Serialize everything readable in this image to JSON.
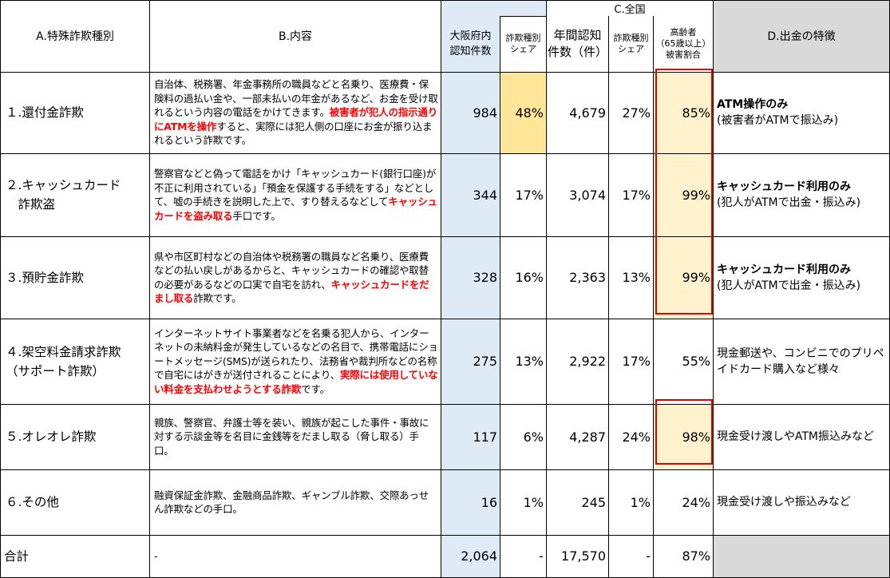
{
  "headers": {
    "a": "A.特殊詐欺種別",
    "b": "B.内容",
    "c": "C.全国",
    "osaka_count": [
      "大阪府内",
      "認知件数"
    ],
    "osaka_share": [
      "詐欺種別",
      "シェア"
    ],
    "annual_count": [
      "年間認知",
      "件数（件）"
    ],
    "national_share": [
      "詐欺種別",
      "シェア"
    ],
    "elderly_ratio": [
      "高齢者",
      "（65歳以上）",
      "被害割合"
    ],
    "d": "D.出金の特徴"
  },
  "rows": [
    {
      "type": [
        "１.還付金詐欺"
      ],
      "desc_plain": "自治体、税務署、年金事務所の職員などと名乗り、医療費・保険料の過払い金や、一部未払いの年金があるなど、お金を受け取れるという内容の電話をかけてきます。",
      "desc_red": "被害者が犯人の指示通りにATMを操作",
      "desc_tail": "すると、実際には犯人側の口座にお金が振り込まれるという詐欺です。",
      "osaka_count": "984",
      "osaka_share": "48%",
      "national_count": "4,679",
      "national_share": "27%",
      "elderly_ratio": "85%",
      "feature_bold": "ATM操作のみ",
      "feature": "(被害者がATMで振込み)"
    },
    {
      "type": [
        "２.キャッシュカード",
        "　詐欺盗"
      ],
      "desc_plain": "警察官などと偽って電話をかけ「キャッシュカード(銀行口座)が不正に利用されている」「預金を保護する手続をする」などとして、嘘の手続きを説明した上で、すり替えるなどして",
      "desc_red": "キャッシュカードを盗み取る",
      "desc_tail": "手口です。",
      "osaka_count": "344",
      "osaka_share": "17%",
      "national_count": "3,074",
      "national_share": "17%",
      "elderly_ratio": "99%",
      "feature_bold": "キャッシュカード利用のみ",
      "feature": "(犯人がATMで出金・振込み)"
    },
    {
      "type": [
        "３.預貯金詐欺"
      ],
      "desc_plain": "県や市区町村などの自治体や税務署の職員など名乗り、医療費などの払い戻しがあるからと、キャッシュカードの確認や取替の必要があるなどの口実で自宅を訪れ、",
      "desc_red": "キャッシュカードをだまし取る",
      "desc_tail": "詐欺です。",
      "osaka_count": "328",
      "osaka_share": "16%",
      "national_count": "2,363",
      "national_share": "13%",
      "elderly_ratio": "99%",
      "feature_bold": "キャッシュカード利用のみ",
      "feature": "(犯人がATMで出金・振込み)"
    },
    {
      "type": [
        "４.架空料金請求詐欺",
        "（サポート詐欺）"
      ],
      "desc_plain": "インターネットサイト事業者などを名乗る犯人から、インターネットの未納料金が発生しているなどの名目で、携帯電話にショートメッセージ(SMS)が送られたり、法務省や裁判所などの名称で自宅にはがきが送付されることにより、",
      "desc_red": "実際には使用していない料金を支払わせようとする詐欺",
      "desc_tail": "です。",
      "osaka_count": "275",
      "osaka_share": "13%",
      "national_count": "2,922",
      "national_share": "17%",
      "elderly_ratio": "55%",
      "feature_bold": "",
      "feature": "現金郵送や、コンビニでのプリペイドカード購入など様々"
    },
    {
      "type": [
        "５.オレオレ詐欺"
      ],
      "desc_plain": "親族、警察官、弁護士等を装い、親族が起こした事件・事故に対する示談金等を名目に金銭等をだまし取る（脅し取る）手口。",
      "desc_red": "",
      "desc_tail": "",
      "osaka_count": "117",
      "osaka_share": "6%",
      "national_count": "4,287",
      "national_share": "24%",
      "elderly_ratio": "98%",
      "feature_bold": "",
      "feature": "現金受け渡しやATM振込みなど"
    },
    {
      "type": [
        "６.その他"
      ],
      "desc_plain": "融資保証金詐欺、金融商品詐欺、ギャンブル詐欺、交際あっせん詐欺などの手口。",
      "desc_red": "",
      "desc_tail": "",
      "osaka_count": "16",
      "osaka_share": "1%",
      "national_count": "245",
      "national_share": "1%",
      "elderly_ratio": "24%",
      "feature_bold": "",
      "feature": "現金受け渡しや振込みなど"
    }
  ],
  "total": {
    "label": "合計",
    "desc": "-",
    "osaka_count": "2,064",
    "osaka_share": "-",
    "national_count": "17,570",
    "national_share": "-",
    "elderly_ratio": "87%"
  },
  "colors": {
    "osaka_column_fill": "#deebf7",
    "feature_column_fill": "#d9d9d9",
    "share_highlight": "#ffe699",
    "elderly_highlight": "#fff2cc",
    "emphasis_text": "#ff0000",
    "highlight_border": "#e00000"
  }
}
